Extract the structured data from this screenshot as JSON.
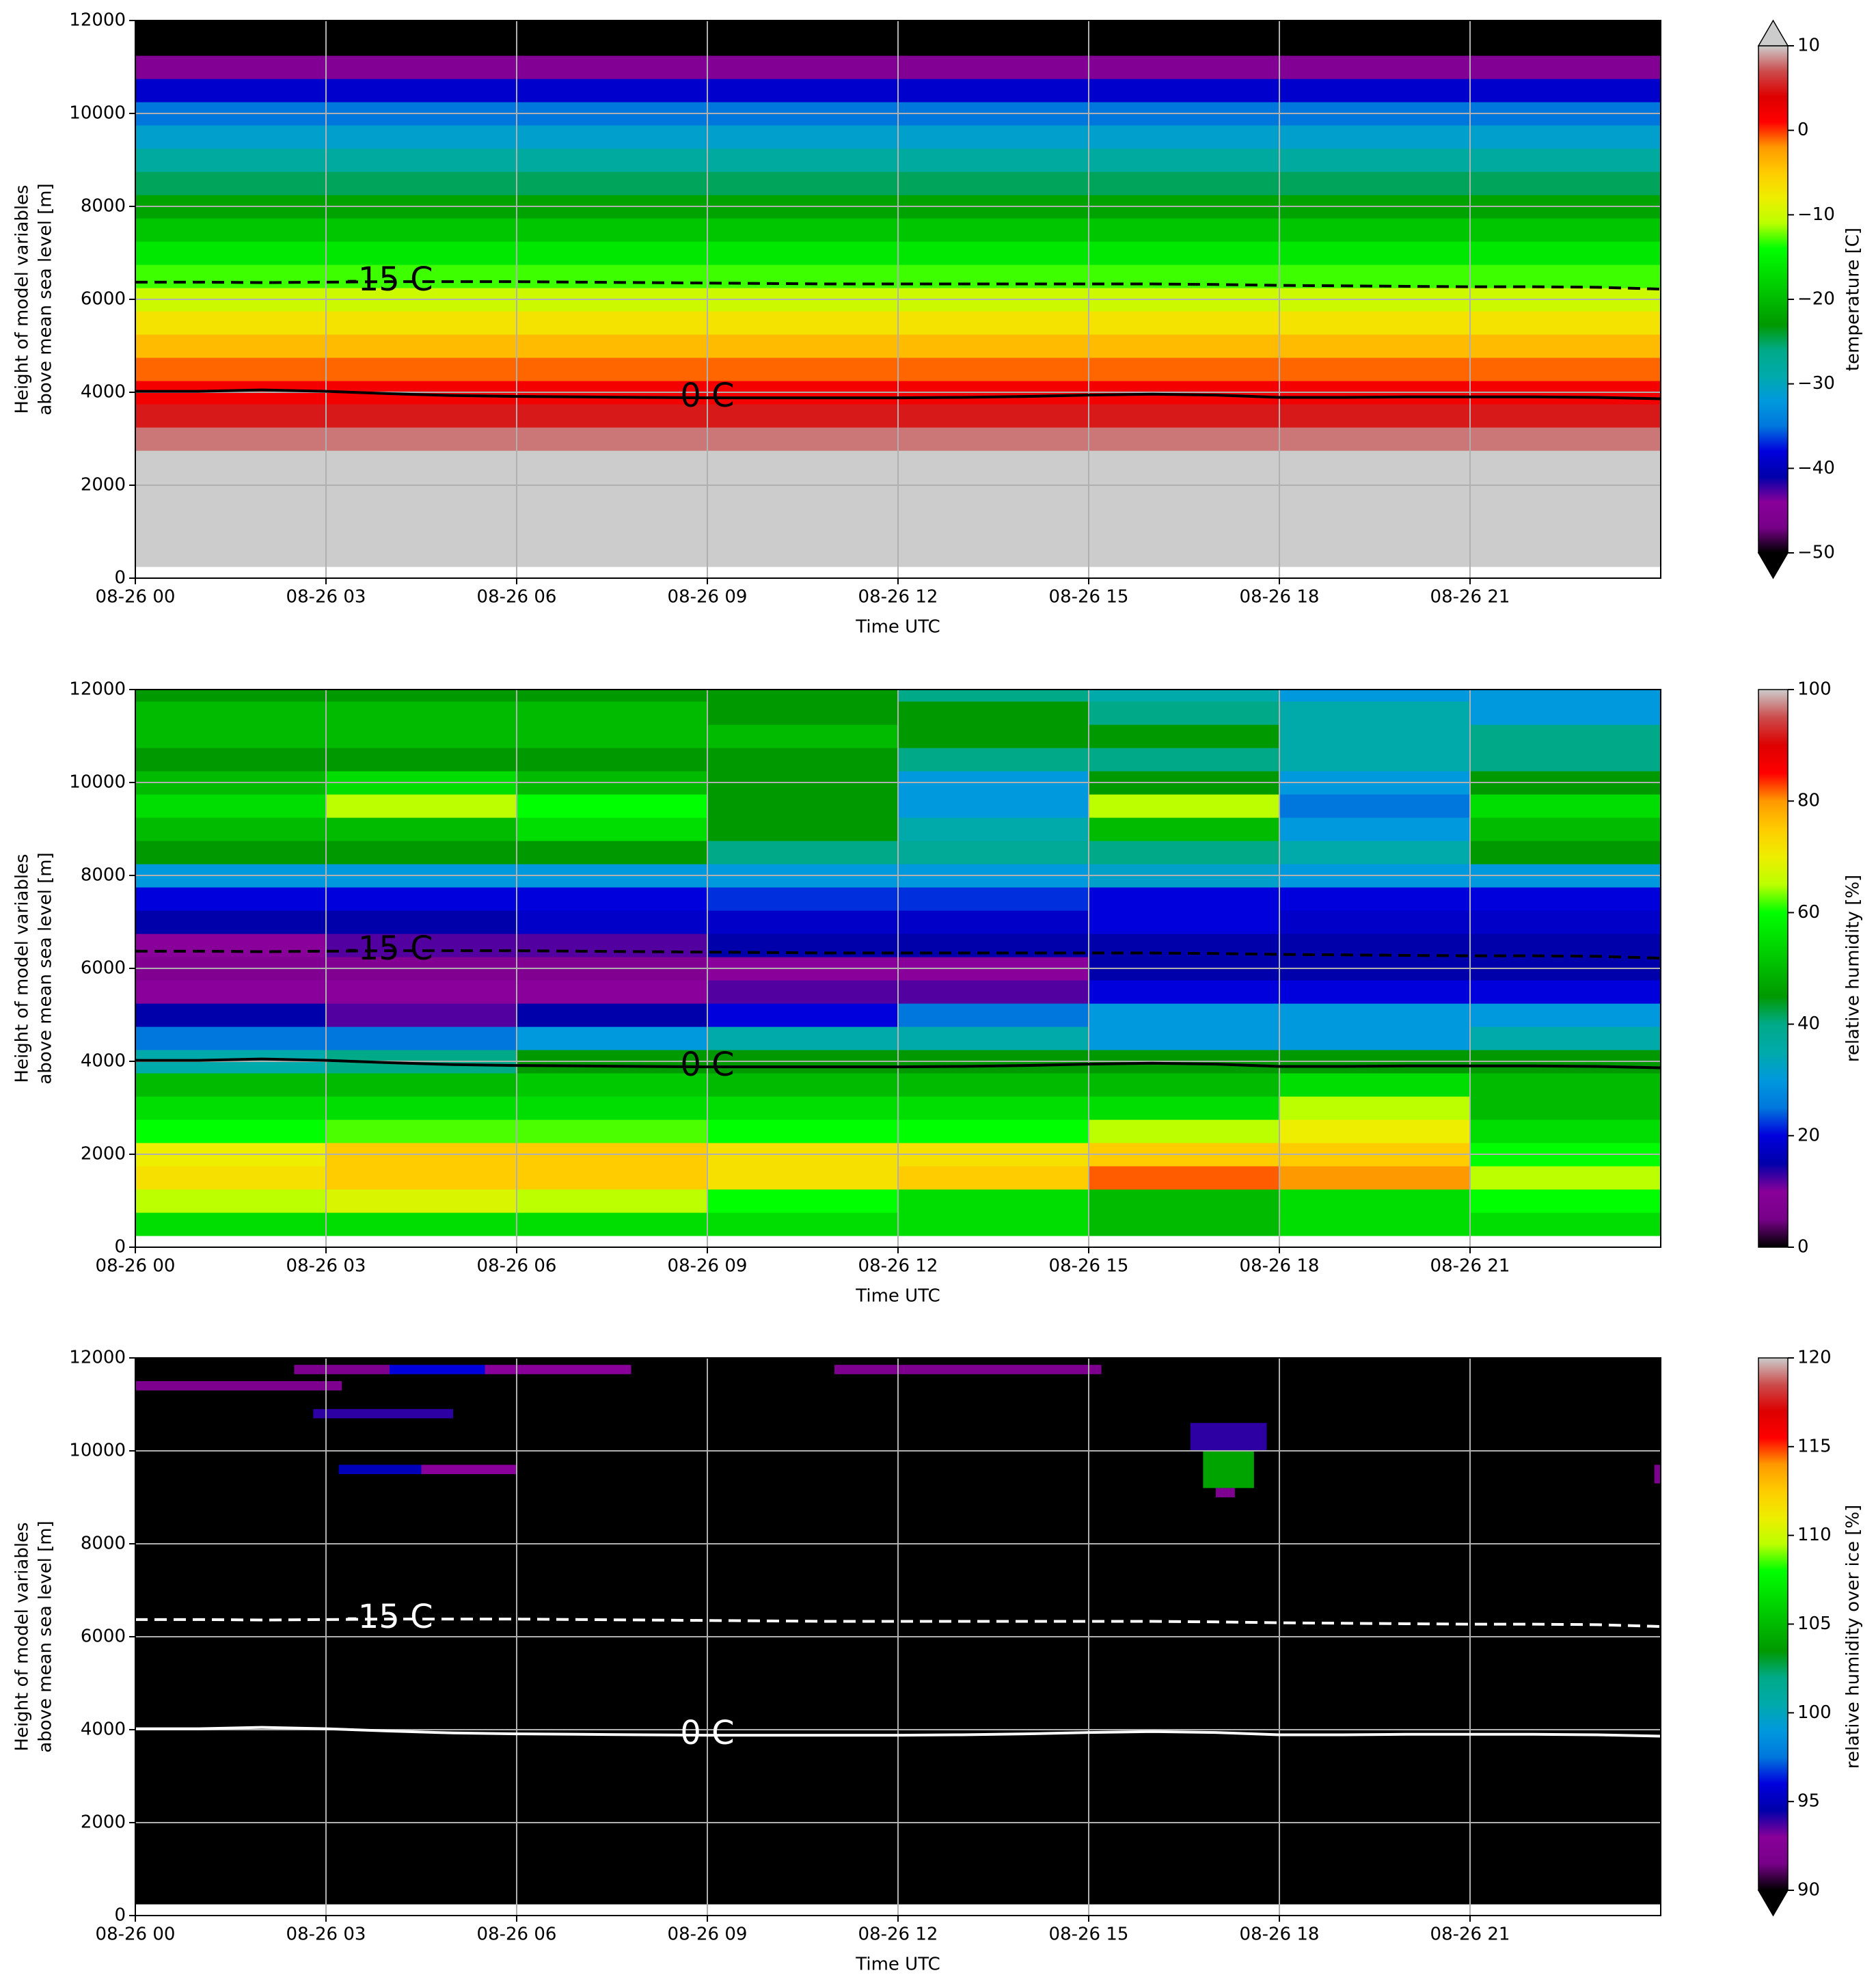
{
  "chart_data": [
    {
      "type": "heatmap",
      "xlabel": "Time UTC",
      "ylabel": [
        "Height of model variables",
        "above mean sea level [m]"
      ],
      "colorbar_label": "temperature [C]",
      "xlim": [
        0,
        24
      ],
      "xticks": [
        {
          "value": 0,
          "label": "08-26 00"
        },
        {
          "value": 3,
          "label": "08-26 03"
        },
        {
          "value": 6,
          "label": "08-26 06"
        },
        {
          "value": 9,
          "label": "08-26 09"
        },
        {
          "value": 12,
          "label": "08-26 12"
        },
        {
          "value": 15,
          "label": "08-26 15"
        },
        {
          "value": 18,
          "label": "08-26 18"
        },
        {
          "value": 21,
          "label": "08-26 21"
        }
      ],
      "ylim": [
        0,
        12000
      ],
      "yticks": [
        0,
        2000,
        4000,
        6000,
        8000,
        10000,
        12000
      ],
      "grid": true,
      "clim": [
        -50,
        10
      ],
      "cticks": [
        10,
        0,
        {
          "value": -10,
          "label": "−10"
        },
        {
          "value": -20,
          "label": "−20"
        },
        {
          "value": -30,
          "label": "−30"
        },
        {
          "value": -40,
          "label": "−40"
        },
        {
          "value": -50,
          "label": "−50"
        }
      ],
      "extend": "both",
      "over_color": "#cccccc",
      "under_color": "#000000",
      "colormap": [
        "#000000",
        "#770088",
        "#880099",
        "#0000aa",
        "#0000dd",
        "#0077dd",
        "#0099dd",
        "#00aaaa",
        "#00aa88",
        "#009900",
        "#00bb00",
        "#00dd00",
        "#00ff00",
        "#bbff00",
        "#eeee00",
        "#ffcc00",
        "#ff9900",
        "#ff0000",
        "#dd0000",
        "#cc4c4c",
        "#cccccc"
      ],
      "x": [
        0,
        24
      ],
      "y": [
        250,
        750,
        1250,
        1750,
        2250,
        2750,
        3250,
        3750,
        4250,
        4750,
        5250,
        5750,
        6250,
        6750,
        7250,
        7750,
        8250,
        8750,
        9250,
        9750,
        10250,
        10750,
        11250,
        11750,
        12000
      ],
      "z": [
        [
          22
        ],
        [
          19
        ],
        [
          16
        ],
        [
          13
        ],
        [
          11
        ],
        [
          8
        ],
        [
          5
        ],
        [
          2
        ],
        [
          -1
        ],
        [
          -4
        ],
        [
          -7
        ],
        [
          -10
        ],
        [
          -13
        ],
        [
          -16
        ],
        [
          -19
        ],
        [
          -22
        ],
        [
          -25
        ],
        [
          -28
        ],
        [
          -31
        ],
        [
          -35
        ],
        [
          -39
        ],
        [
          -45
        ],
        [
          -52
        ],
        [
          -55
        ]
      ],
      "contour_color": "#000000",
      "contours": [
        {
          "label": "-15 C",
          "style": "dashed",
          "x": [
            0,
            1,
            2,
            3,
            4,
            5,
            6,
            7,
            8,
            9,
            10,
            11,
            12,
            13,
            14,
            15,
            16,
            17,
            18,
            19,
            20,
            21,
            22,
            23,
            24
          ],
          "y": [
            6370,
            6370,
            6360,
            6370,
            6380,
            6380,
            6380,
            6370,
            6360,
            6350,
            6340,
            6330,
            6330,
            6330,
            6330,
            6330,
            6330,
            6320,
            6300,
            6290,
            6280,
            6270,
            6270,
            6260,
            6220
          ]
        },
        {
          "label": "0 C",
          "style": "solid",
          "x": [
            0,
            1,
            2,
            3,
            4,
            5,
            6,
            7,
            8,
            9,
            10,
            11,
            12,
            13,
            14,
            15,
            16,
            17,
            18,
            19,
            20,
            21,
            22,
            23,
            24
          ],
          "y": [
            4020,
            4020,
            4050,
            4020,
            3970,
            3930,
            3910,
            3900,
            3890,
            3880,
            3880,
            3880,
            3880,
            3890,
            3910,
            3940,
            3960,
            3940,
            3890,
            3890,
            3900,
            3900,
            3900,
            3890,
            3860
          ]
        }
      ]
    },
    {
      "type": "heatmap",
      "xlabel": "Time UTC",
      "ylabel": [
        "Height of model variables",
        "above mean sea level [m]"
      ],
      "colorbar_label": "relative humidity [%]",
      "xlim": [
        0,
        24
      ],
      "xticks": [
        {
          "value": 0,
          "label": "08-26 00"
        },
        {
          "value": 3,
          "label": "08-26 03"
        },
        {
          "value": 6,
          "label": "08-26 06"
        },
        {
          "value": 9,
          "label": "08-26 09"
        },
        {
          "value": 12,
          "label": "08-26 12"
        },
        {
          "value": 15,
          "label": "08-26 15"
        },
        {
          "value": 18,
          "label": "08-26 18"
        },
        {
          "value": 21,
          "label": "08-26 21"
        }
      ],
      "ylim": [
        0,
        12000
      ],
      "yticks": [
        0,
        2000,
        4000,
        6000,
        8000,
        10000,
        12000
      ],
      "grid": true,
      "clim": [
        0,
        100
      ],
      "cticks": [
        0,
        20,
        40,
        60,
        80,
        100
      ],
      "extend": "neither",
      "over_color": "#cccccc",
      "under_color": "#000000",
      "colormap": [
        "#000000",
        "#770088",
        "#880099",
        "#0000aa",
        "#0000dd",
        "#0077dd",
        "#0099dd",
        "#00aaaa",
        "#00aa88",
        "#009900",
        "#00bb00",
        "#00dd00",
        "#00ff00",
        "#bbff00",
        "#eeee00",
        "#ffcc00",
        "#ff9900",
        "#ff0000",
        "#dd0000",
        "#cc4c4c",
        "#cccccc"
      ],
      "x": [
        0,
        3,
        6,
        9,
        12,
        15,
        18,
        21,
        24
      ],
      "y": [
        250,
        750,
        1250,
        1750,
        2250,
        2750,
        3250,
        3750,
        4250,
        4750,
        5250,
        5750,
        6250,
        6750,
        7250,
        7750,
        8250,
        8750,
        9250,
        9750,
        10250,
        10750,
        11250,
        11750,
        12000
      ],
      "z": [
        [
          55,
          55,
          55,
          55,
          55,
          50,
          55,
          55
        ],
        [
          65,
          68,
          65,
          60,
          55,
          50,
          55,
          60
        ],
        [
          72,
          75,
          75,
          72,
          75,
          82,
          80,
          65
        ],
        [
          70,
          75,
          75,
          72,
          72,
          75,
          75,
          60
        ],
        [
          60,
          62,
          62,
          60,
          60,
          65,
          70,
          55
        ],
        [
          55,
          55,
          55,
          55,
          55,
          55,
          65,
          50
        ],
        [
          50,
          50,
          52,
          50,
          50,
          50,
          55,
          50
        ],
        [
          35,
          40,
          45,
          45,
          45,
          45,
          45,
          45
        ],
        [
          25,
          25,
          30,
          35,
          35,
          30,
          30,
          35
        ],
        [
          15,
          12,
          15,
          20,
          25,
          30,
          30,
          30
        ],
        [
          10,
          10,
          10,
          12,
          12,
          20,
          20,
          20
        ],
        [
          8,
          8,
          8,
          10,
          10,
          15,
          15,
          15
        ],
        [
          10,
          12,
          12,
          15,
          15,
          15,
          15,
          15
        ],
        [
          15,
          15,
          18,
          18,
          18,
          20,
          18,
          18
        ],
        [
          20,
          20,
          20,
          22,
          22,
          20,
          20,
          20
        ],
        [
          30,
          30,
          30,
          30,
          30,
          32,
          30,
          30
        ],
        [
          45,
          45,
          45,
          40,
          38,
          40,
          35,
          45
        ],
        [
          50,
          50,
          55,
          45,
          35,
          50,
          30,
          50
        ],
        [
          55,
          65,
          60,
          45,
          30,
          65,
          25,
          55
        ],
        [
          50,
          55,
          50,
          45,
          30,
          45,
          30,
          45
        ],
        [
          45,
          45,
          45,
          45,
          40,
          40,
          35,
          40
        ],
        [
          50,
          50,
          50,
          50,
          45,
          45,
          35,
          40
        ],
        [
          50,
          50,
          50,
          45,
          45,
          40,
          35,
          30
        ],
        [
          45,
          45,
          45,
          45,
          40,
          35,
          30,
          30
        ]
      ],
      "contour_color": "#000000",
      "contours": [
        {
          "label": "-15 C",
          "style": "dashed",
          "x": [
            0,
            1,
            2,
            3,
            4,
            5,
            6,
            7,
            8,
            9,
            10,
            11,
            12,
            13,
            14,
            15,
            16,
            17,
            18,
            19,
            20,
            21,
            22,
            23,
            24
          ],
          "y": [
            6370,
            6370,
            6360,
            6370,
            6380,
            6380,
            6380,
            6370,
            6360,
            6350,
            6340,
            6330,
            6330,
            6330,
            6330,
            6330,
            6330,
            6320,
            6300,
            6290,
            6280,
            6270,
            6270,
            6260,
            6220
          ]
        },
        {
          "label": "0 C",
          "style": "solid",
          "x": [
            0,
            1,
            2,
            3,
            4,
            5,
            6,
            7,
            8,
            9,
            10,
            11,
            12,
            13,
            14,
            15,
            16,
            17,
            18,
            19,
            20,
            21,
            22,
            23,
            24
          ],
          "y": [
            4020,
            4020,
            4050,
            4020,
            3970,
            3930,
            3910,
            3900,
            3890,
            3880,
            3880,
            3880,
            3880,
            3890,
            3910,
            3940,
            3960,
            3940,
            3890,
            3890,
            3900,
            3900,
            3900,
            3890,
            3860
          ]
        }
      ]
    },
    {
      "type": "heatmap",
      "xlabel": "Time UTC",
      "ylabel": [
        "Height of model variables",
        "above mean sea level [m]"
      ],
      "colorbar_label": "relative humidity over ice [%]",
      "xlim": [
        0,
        24
      ],
      "xticks": [
        {
          "value": 0,
          "label": "08-26 00"
        },
        {
          "value": 3,
          "label": "08-26 03"
        },
        {
          "value": 6,
          "label": "08-26 06"
        },
        {
          "value": 9,
          "label": "08-26 09"
        },
        {
          "value": 12,
          "label": "08-26 12"
        },
        {
          "value": 15,
          "label": "08-26 15"
        },
        {
          "value": 18,
          "label": "08-26 18"
        },
        {
          "value": 21,
          "label": "08-26 21"
        }
      ],
      "ylim": [
        0,
        12000
      ],
      "yticks": [
        0,
        2000,
        4000,
        6000,
        8000,
        10000,
        12000
      ],
      "grid": true,
      "clim": [
        90,
        120
      ],
      "cticks": [
        90,
        95,
        100,
        105,
        110,
        115,
        120
      ],
      "extend": "min",
      "over_color": "#cccccc",
      "under_color": "#000000",
      "colormap": [
        "#000000",
        "#770088",
        "#880099",
        "#0000aa",
        "#0000dd",
        "#0077dd",
        "#0099dd",
        "#00aaaa",
        "#00aa88",
        "#009900",
        "#00bb00",
        "#00dd00",
        "#00ff00",
        "#bbff00",
        "#eeee00",
        "#ffcc00",
        "#ff9900",
        "#ff0000",
        "#dd0000",
        "#cc4c4c",
        "#cccccc"
      ],
      "x": [
        0,
        24
      ],
      "y": [
        250,
        12000
      ],
      "z": [
        [
          80
        ]
      ],
      "cells": [
        {
          "x": [
            0,
            3.25
          ],
          "y": [
            11300,
            11500
          ],
          "value": 92
        },
        {
          "x": [
            2.5,
            4
          ],
          "y": [
            11650,
            11850
          ],
          "value": 92
        },
        {
          "x": [
            4,
            5.5
          ],
          "y": [
            11650,
            11850
          ],
          "value": 96
        },
        {
          "x": [
            5.5,
            7.8
          ],
          "y": [
            11650,
            11850
          ],
          "value": 93
        },
        {
          "x": [
            2.8,
            5
          ],
          "y": [
            10700,
            10900
          ],
          "value": 94
        },
        {
          "x": [
            3.2,
            4.5
          ],
          "y": [
            9500,
            9700
          ],
          "value": 95
        },
        {
          "x": [
            4.5,
            6
          ],
          "y": [
            9500,
            9700
          ],
          "value": 93
        },
        {
          "x": [
            11,
            15.2
          ],
          "y": [
            11650,
            11850
          ],
          "value": 92
        },
        {
          "x": [
            16.6,
            17.8
          ],
          "y": [
            10000,
            10600
          ],
          "value": 94
        },
        {
          "x": [
            16.8,
            17.6
          ],
          "y": [
            9200,
            10000
          ],
          "value": 104
        },
        {
          "x": [
            17,
            17.3
          ],
          "y": [
            9000,
            9200
          ],
          "value": 92
        },
        {
          "x": [
            23.9,
            24
          ],
          "y": [
            9300,
            9700
          ],
          "value": 92
        }
      ],
      "contour_color": "#ffffff",
      "contours": [
        {
          "label": "-15 C",
          "style": "dashed",
          "x": [
            0,
            1,
            2,
            3,
            4,
            5,
            6,
            7,
            8,
            9,
            10,
            11,
            12,
            13,
            14,
            15,
            16,
            17,
            18,
            19,
            20,
            21,
            22,
            23,
            24
          ],
          "y": [
            6370,
            6370,
            6360,
            6370,
            6380,
            6380,
            6380,
            6370,
            6360,
            6350,
            6340,
            6330,
            6330,
            6330,
            6330,
            6330,
            6330,
            6320,
            6300,
            6290,
            6280,
            6270,
            6270,
            6260,
            6220
          ]
        },
        {
          "label": "0 C",
          "style": "solid",
          "x": [
            0,
            1,
            2,
            3,
            4,
            5,
            6,
            7,
            8,
            9,
            10,
            11,
            12,
            13,
            14,
            15,
            16,
            17,
            18,
            19,
            20,
            21,
            22,
            23,
            24
          ],
          "y": [
            4020,
            4020,
            4050,
            4020,
            3970,
            3930,
            3910,
            3900,
            3890,
            3880,
            3880,
            3880,
            3880,
            3890,
            3910,
            3940,
            3960,
            3940,
            3890,
            3890,
            3900,
            3900,
            3900,
            3890,
            3860
          ]
        }
      ]
    }
  ]
}
